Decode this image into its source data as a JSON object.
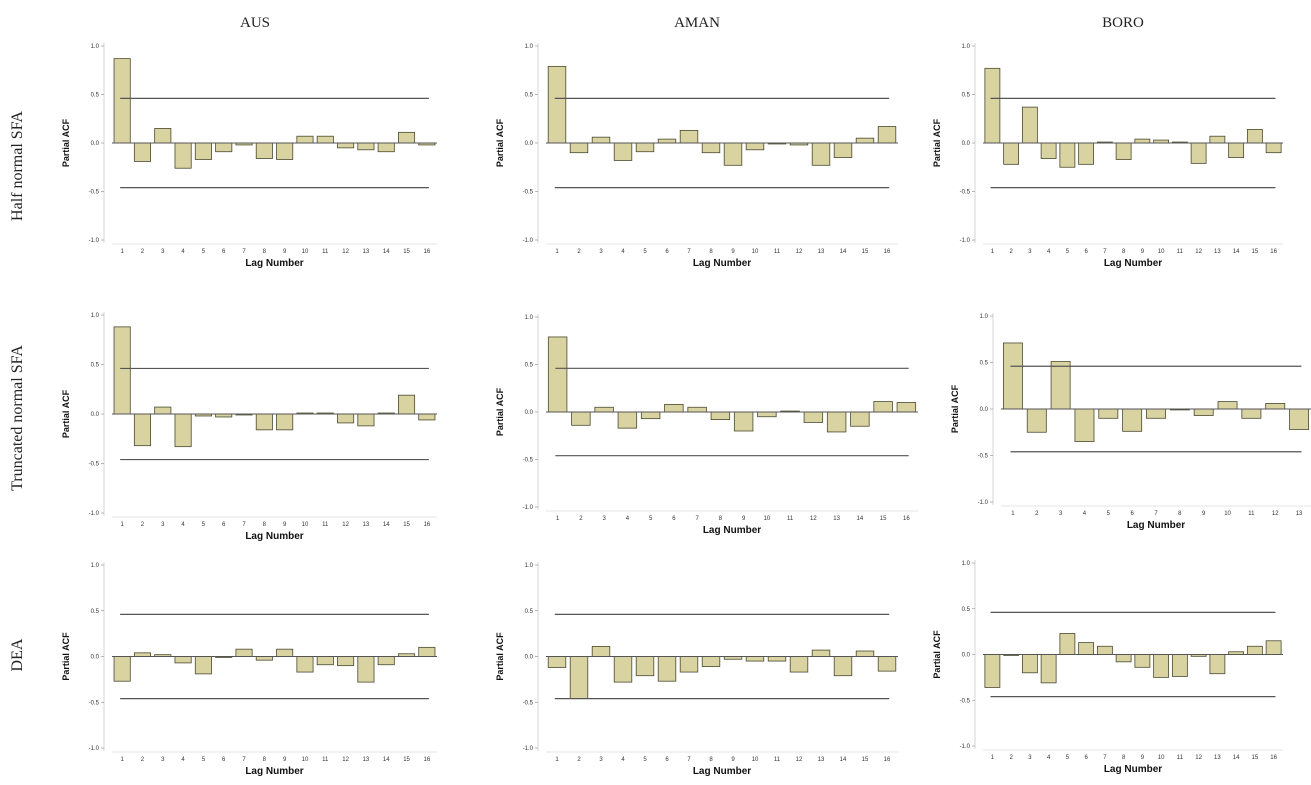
{
  "figure": {
    "column_titles": [
      "AUS",
      "AMAN",
      "BORO"
    ],
    "row_titles": [
      "Half normal SFA",
      "Truncated normal SFA",
      "DEA"
    ],
    "colors": {
      "bar_fill": "#d9d3a1",
      "bar_stroke": "#4a4a30",
      "line": "#555555"
    }
  },
  "chart_data": [
    {
      "type": "bar",
      "row": "Half normal SFA",
      "column": "AUS",
      "categories": [
        "1",
        "2",
        "3",
        "4",
        "5",
        "6",
        "7",
        "8",
        "9",
        "10",
        "11",
        "12",
        "13",
        "14",
        "15",
        "16"
      ],
      "values": [
        0.87,
        -0.19,
        0.15,
        -0.26,
        -0.17,
        -0.09,
        -0.02,
        -0.16,
        -0.17,
        0.07,
        0.07,
        -0.05,
        -0.07,
        -0.09,
        0.11,
        -0.02
      ],
      "confidence_limits": [
        0.46,
        -0.46
      ],
      "xlabel": "Lag Number",
      "ylabel": "Partial ACF",
      "ylim": [
        -1.0,
        1.0
      ],
      "yticks": [
        "1.0",
        "0.5",
        "0.0",
        "-0.5",
        "-1.0"
      ]
    },
    {
      "type": "bar",
      "row": "Half normal SFA",
      "column": "AMAN",
      "categories": [
        "1",
        "2",
        "3",
        "4",
        "5",
        "6",
        "7",
        "8",
        "9",
        "10",
        "11",
        "12",
        "13",
        "14",
        "15",
        "16"
      ],
      "values": [
        0.79,
        -0.1,
        0.06,
        -0.18,
        -0.09,
        0.04,
        0.13,
        -0.1,
        -0.23,
        -0.07,
        -0.01,
        -0.02,
        -0.23,
        -0.15,
        0.05,
        0.17
      ],
      "confidence_limits": [
        0.46,
        -0.46
      ],
      "xlabel": "Lag Number",
      "ylabel": "Partial ACF",
      "ylim": [
        -1.0,
        1.0
      ],
      "yticks": [
        "1.0",
        "0.5",
        "0.0",
        "-0.5",
        "-1.0"
      ]
    },
    {
      "type": "bar",
      "row": "Half normal SFA",
      "column": "BORO",
      "categories": [
        "1",
        "2",
        "3",
        "4",
        "5",
        "6",
        "7",
        "8",
        "9",
        "10",
        "11",
        "12",
        "13",
        "14",
        "15",
        "16"
      ],
      "values": [
        0.77,
        -0.22,
        0.37,
        -0.16,
        -0.25,
        -0.22,
        0.01,
        -0.17,
        0.04,
        0.03,
        0.01,
        -0.21,
        0.07,
        -0.15,
        0.14,
        -0.1
      ],
      "confidence_limits": [
        0.46,
        -0.46
      ],
      "xlabel": "Lag Number",
      "ylabel": "Partial ACF",
      "ylim": [
        -1.0,
        1.0
      ],
      "yticks": [
        "1.0",
        "0.5",
        "0.0",
        "-0.5",
        "-1.0"
      ]
    },
    {
      "type": "bar",
      "row": "Truncated normal SFA",
      "column": "AUS",
      "categories": [
        "1",
        "2",
        "3",
        "4",
        "5",
        "6",
        "7",
        "8",
        "9",
        "10",
        "11",
        "12",
        "13",
        "14",
        "15",
        "16"
      ],
      "values": [
        0.88,
        -0.32,
        0.07,
        -0.33,
        -0.02,
        -0.03,
        -0.01,
        -0.16,
        -0.16,
        0.01,
        0.01,
        -0.09,
        -0.12,
        0.01,
        0.19,
        -0.06
      ],
      "confidence_limits": [
        0.46,
        -0.46
      ],
      "xlabel": "Lag Number",
      "ylabel": "Partial ACF",
      "ylim": [
        -1.0,
        1.0
      ],
      "yticks": [
        "1.0",
        "0.5",
        "0.0",
        "-0.5",
        "-1.0"
      ]
    },
    {
      "type": "bar",
      "row": "Truncated normal SFA",
      "column": "AMAN",
      "categories": [
        "1",
        "2",
        "3",
        "4",
        "5",
        "6",
        "7",
        "8",
        "9",
        "10",
        "11",
        "12",
        "13",
        "14",
        "15",
        "16"
      ],
      "values": [
        0.79,
        -0.14,
        0.05,
        -0.17,
        -0.07,
        0.08,
        0.05,
        -0.08,
        -0.2,
        -0.05,
        0.01,
        -0.11,
        -0.21,
        -0.15,
        0.11,
        0.1
      ],
      "confidence_limits": [
        0.46,
        -0.46
      ],
      "xlabel": "Lag Number",
      "ylabel": "Partial ACF",
      "ylim": [
        -1.0,
        1.0
      ],
      "yticks": [
        "1.0",
        "0.5",
        "0.0",
        "-0.5",
        "-1.0"
      ]
    },
    {
      "type": "bar",
      "row": "Truncated normal SFA",
      "column": "BORO",
      "categories": [
        "1",
        "2",
        "3",
        "4",
        "5",
        "6",
        "7",
        "8",
        "9",
        "10",
        "11",
        "12",
        "13"
      ],
      "values": [
        0.71,
        -0.25,
        0.51,
        -0.35,
        -0.1,
        -0.24,
        -0.1,
        -0.01,
        -0.07,
        0.08,
        -0.1,
        0.06,
        -0.22
      ],
      "confidence_limits": [
        0.46,
        -0.46
      ],
      "xlabel": "Lag Number",
      "ylabel": "Partial ACF",
      "ylim": [
        -1.0,
        1.0
      ],
      "yticks": [
        "1.0",
        "0.5",
        "0.0",
        "-0.5",
        "-1.0"
      ]
    },
    {
      "type": "bar",
      "row": "DEA",
      "column": "AUS",
      "categories": [
        "1",
        "2",
        "3",
        "4",
        "5",
        "6",
        "7",
        "8",
        "9",
        "10",
        "11",
        "12",
        "13",
        "14",
        "15",
        "16"
      ],
      "values": [
        -0.27,
        0.04,
        0.02,
        -0.07,
        -0.19,
        -0.01,
        0.08,
        -0.04,
        0.08,
        -0.17,
        -0.09,
        -0.1,
        -0.28,
        -0.09,
        0.03,
        0.1
      ],
      "confidence_limits": [
        0.46,
        -0.46
      ],
      "xlabel": "Lag Number",
      "ylabel": "Partial ACF",
      "ylim": [
        -1.0,
        1.0
      ],
      "yticks": [
        "1.0",
        "0.5",
        "0.0",
        "-0.5",
        "-1.0"
      ]
    },
    {
      "type": "bar",
      "row": "DEA",
      "column": "AMAN",
      "categories": [
        "1",
        "2",
        "3",
        "4",
        "5",
        "6",
        "7",
        "8",
        "9",
        "10",
        "11",
        "12",
        "13",
        "14",
        "15",
        "16"
      ],
      "values": [
        -0.12,
        -0.46,
        0.11,
        -0.28,
        -0.21,
        -0.27,
        -0.17,
        -0.11,
        -0.03,
        -0.05,
        -0.05,
        -0.17,
        0.07,
        -0.21,
        0.06,
        -0.16
      ],
      "confidence_limits": [
        0.46,
        -0.46
      ],
      "xlabel": "Lag Number",
      "ylabel": "Partial ACF",
      "ylim": [
        -1.0,
        1.0
      ],
      "yticks": [
        "1.0",
        "0.5",
        "0.0",
        "-0.5",
        "-1.0"
      ]
    },
    {
      "type": "bar",
      "row": "DEA",
      "column": "BORO",
      "categories": [
        "1",
        "2",
        "3",
        "4",
        "5",
        "6",
        "7",
        "8",
        "9",
        "10",
        "11",
        "12",
        "13",
        "14",
        "15",
        "16"
      ],
      "values": [
        -0.36,
        -0.01,
        -0.2,
        -0.31,
        0.23,
        0.13,
        0.09,
        -0.08,
        -0.14,
        -0.25,
        -0.24,
        -0.02,
        -0.21,
        0.03,
        0.09,
        0.15
      ],
      "confidence_limits": [
        0.46,
        -0.46
      ],
      "xlabel": "Lag Number",
      "ylabel": "Partial ACF",
      "ylim": [
        -1.0,
        1.0
      ],
      "yticks": [
        "1.0",
        "0.5",
        "0.0",
        "-0.5",
        "-1.0"
      ]
    }
  ]
}
